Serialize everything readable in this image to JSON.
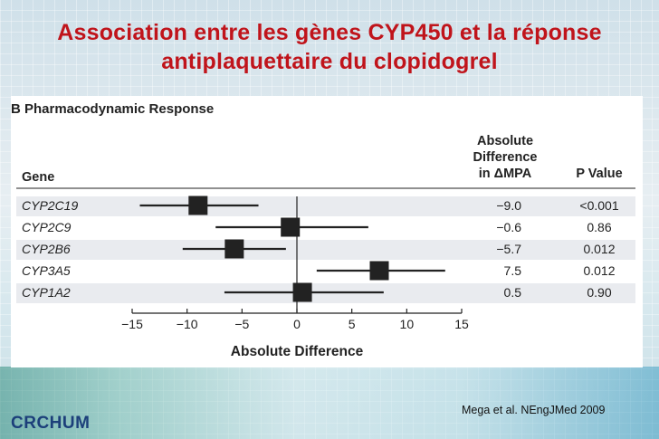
{
  "slide": {
    "title_line1": "Association entre les gènes CYP450 et la réponse",
    "title_line2": "antiplaquettaire du clopidogrel",
    "citation": "Mega et al. NEngJMed 2009",
    "logo": "CRCHUM"
  },
  "chart_data": {
    "type": "forest",
    "panel_title": "B  Pharmacodynamic Response",
    "gene_header": "Gene",
    "diff_header": [
      "Absolute",
      "Difference",
      "in ΔMPA"
    ],
    "p_header": "P Value",
    "xlabel": "Absolute Difference",
    "xlim": [
      -15,
      15
    ],
    "xticks": [
      -15,
      -10,
      -5,
      0,
      5,
      10,
      15
    ],
    "rows": [
      {
        "gene": "CYP2C19",
        "estimate": -9.0,
        "ci": [
          -14.3,
          -3.5
        ],
        "label": "−9.0",
        "p": "<0.001"
      },
      {
        "gene": "CYP2C9",
        "estimate": -0.6,
        "ci": [
          -7.4,
          6.5
        ],
        "label": "−0.6",
        "p": "0.86"
      },
      {
        "gene": "CYP2B6",
        "estimate": -5.7,
        "ci": [
          -10.4,
          -1.0
        ],
        "label": "−5.7",
        "p": "0.012"
      },
      {
        "gene": "CYP3A5",
        "estimate": 7.5,
        "ci": [
          1.8,
          13.5
        ],
        "label": "7.5",
        "p": "0.012"
      },
      {
        "gene": "CYP1A2",
        "estimate": 0.5,
        "ci": [
          -6.6,
          7.9
        ],
        "label": "0.5",
        "p": "0.90"
      }
    ]
  }
}
